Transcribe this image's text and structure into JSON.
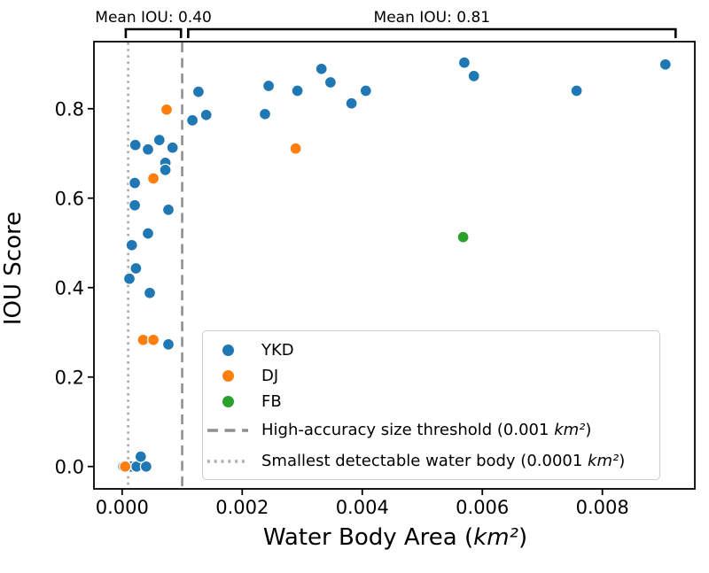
{
  "chart_data": {
    "type": "scatter",
    "xlabel": "Water Body Area (km²)",
    "ylabel": "IOU Score",
    "xlim": [
      -0.00047,
      0.00954
    ],
    "ylim": [
      -0.05,
      0.95
    ],
    "xticks": [
      0,
      0.002,
      0.004,
      0.006,
      0.008
    ],
    "xtick_labels": [
      "0.000",
      "0.002",
      "0.004",
      "0.006",
      "0.008"
    ],
    "yticks": [
      0,
      0.2,
      0.4,
      0.6,
      0.8
    ],
    "ytick_labels": [
      "0.0",
      "0.2",
      "0.4",
      "0.6",
      "0.8"
    ],
    "grid": false,
    "legend_position": "lower center",
    "series": [
      {
        "name": "YKD",
        "color": "#1f77b4",
        "points": [
          [
            2e-05,
            0.0
          ],
          [
            0.00015,
            0.0
          ],
          [
            0.00024,
            0.0
          ],
          [
            0.0004,
            0.0
          ],
          [
            0.00031,
            0.022
          ],
          [
            0.00012,
            0.42
          ],
          [
            0.00023,
            0.443
          ],
          [
            0.00016,
            0.495
          ],
          [
            0.00043,
            0.521
          ],
          [
            0.00021,
            0.584
          ],
          [
            0.00077,
            0.574
          ],
          [
            0.00021,
            0.634
          ],
          [
            0.00046,
            0.388
          ],
          [
            0.00077,
            0.273
          ],
          [
            0.00072,
            0.679
          ],
          [
            0.00072,
            0.663
          ],
          [
            0.00022,
            0.719
          ],
          [
            0.00043,
            0.709
          ],
          [
            0.00084,
            0.713
          ],
          [
            0.00062,
            0.73
          ],
          [
            0.00117,
            0.774
          ],
          [
            0.0014,
            0.786
          ],
          [
            0.00127,
            0.838
          ],
          [
            0.00244,
            0.851
          ],
          [
            0.00238,
            0.788
          ],
          [
            0.00292,
            0.84
          ],
          [
            0.00332,
            0.889
          ],
          [
            0.00347,
            0.859
          ],
          [
            0.00382,
            0.812
          ],
          [
            0.00406,
            0.84
          ],
          [
            0.0057,
            0.903
          ],
          [
            0.00586,
            0.873
          ],
          [
            0.00757,
            0.84
          ],
          [
            0.00905,
            0.899
          ]
        ]
      },
      {
        "name": "DJ",
        "color": "#ff7f0e",
        "points": [
          [
            5e-05,
            0.0
          ],
          [
            0.00035,
            0.283
          ],
          [
            0.00052,
            0.283
          ],
          [
            0.00052,
            0.644
          ],
          [
            0.00074,
            0.798
          ],
          [
            0.00289,
            0.711
          ]
        ]
      },
      {
        "name": "FB",
        "color": "#2ca02c",
        "points": [
          [
            0.00568,
            0.513
          ]
        ]
      }
    ],
    "vlines": [
      {
        "x": 0.001,
        "style": "dashed",
        "color": "#8f8f8f",
        "label": "High-accuracy size threshold (0.001 km²)"
      },
      {
        "x": 0.0001,
        "style": "dotted",
        "color": "#aaaaaa",
        "label": "Smallest detectable water body (0.0001 km²)"
      }
    ],
    "annotations": [
      {
        "label": "Mean IOU: 0.40",
        "x_start": 6e-05,
        "x_end": 0.00098
      },
      {
        "label": "Mean IOU: 0.81",
        "x_start": 0.0011,
        "x_end": 0.00922
      }
    ]
  }
}
